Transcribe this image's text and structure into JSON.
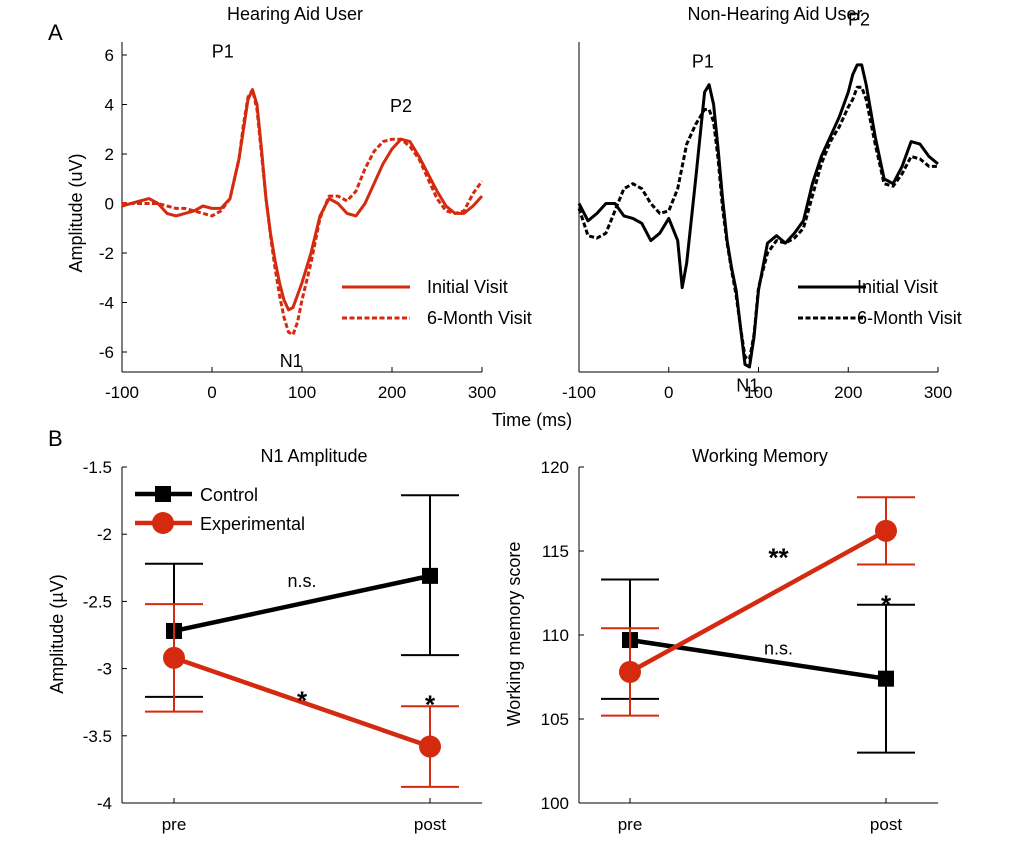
{
  "panel_labels": {
    "a": "A",
    "b": "B"
  },
  "colors": {
    "red": "#d42a0f",
    "black": "#000000"
  },
  "chart_data": [
    {
      "type": "line",
      "title": "Hearing Aid User",
      "ylabel": "Amplitude (uV)",
      "xlim": [
        -100,
        300
      ],
      "ylim": [
        -7,
        7
      ],
      "xticks": [
        -100,
        0,
        100,
        200,
        300
      ],
      "yticks": [
        6,
        4,
        2,
        0,
        -2,
        -4,
        -6
      ],
      "color": "#d42a0f",
      "series": [
        {
          "name": "Initial Visit",
          "style": "solid",
          "x": [
            -100,
            -90,
            -80,
            -70,
            -60,
            -50,
            -40,
            -30,
            -20,
            -10,
            0,
            10,
            20,
            30,
            35,
            40,
            45,
            50,
            55,
            60,
            65,
            70,
            75,
            80,
            85,
            90,
            95,
            100,
            110,
            120,
            130,
            140,
            150,
            160,
            170,
            180,
            190,
            200,
            210,
            220,
            230,
            240,
            250,
            260,
            270,
            280,
            290,
            300
          ],
          "y": [
            -0.1,
            0,
            0.1,
            0.2,
            0,
            -0.4,
            -0.5,
            -0.4,
            -0.3,
            -0.1,
            -0.2,
            -0.2,
            0.2,
            1.8,
            3,
            4.2,
            4.6,
            4,
            2.2,
            0.2,
            -1.2,
            -2.3,
            -3.2,
            -3.9,
            -4.3,
            -4.2,
            -3.7,
            -3.2,
            -2,
            -0.5,
            0.2,
            0,
            -0.4,
            -0.5,
            0,
            0.8,
            1.6,
            2.2,
            2.6,
            2.5,
            1.9,
            1.2,
            0.5,
            -0.1,
            -0.4,
            -0.4,
            -0.1,
            0.3
          ]
        },
        {
          "name": "6-Month Visit",
          "style": "dashed",
          "x": [
            -100,
            -90,
            -80,
            -70,
            -60,
            -50,
            -40,
            -30,
            -20,
            -10,
            0,
            10,
            20,
            30,
            35,
            40,
            45,
            50,
            55,
            60,
            65,
            70,
            75,
            80,
            85,
            90,
            95,
            100,
            110,
            120,
            130,
            140,
            150,
            160,
            170,
            180,
            190,
            200,
            210,
            220,
            230,
            240,
            250,
            260,
            270,
            280,
            290,
            300
          ],
          "y": [
            0,
            0,
            0,
            0,
            0,
            -0.1,
            -0.2,
            -0.2,
            -0.3,
            -0.4,
            -0.5,
            -0.3,
            0.2,
            1.8,
            3.2,
            4.3,
            4.6,
            3.8,
            2,
            0.2,
            -1.3,
            -2.6,
            -3.7,
            -4.6,
            -5.2,
            -5.3,
            -4.8,
            -3.9,
            -2.4,
            -0.6,
            0.3,
            0.3,
            0.1,
            0.5,
            1.4,
            2.1,
            2.5,
            2.6,
            2.6,
            2.3,
            1.8,
            1,
            0.2,
            -0.3,
            -0.4,
            -0.3,
            0.4,
            0.9
          ]
        }
      ],
      "annotations": [
        {
          "text": "P1",
          "x": 12,
          "y": 5.9
        },
        {
          "text": "P2",
          "x": 210,
          "y": 3.7
        },
        {
          "text": "N1",
          "x": 88,
          "y": -6.6
        }
      ],
      "legend": {
        "placement": "bottom-right"
      }
    },
    {
      "type": "line",
      "title": "Non-Hearing Aid User",
      "xlabel": "Time (ms)",
      "xlim": [
        -100,
        300
      ],
      "ylim": [
        -7,
        7
      ],
      "xticks": [
        -100,
        0,
        100,
        200,
        300
      ],
      "color": "#000000",
      "series": [
        {
          "name": "Initial Visit",
          "style": "solid",
          "x": [
            -100,
            -90,
            -80,
            -70,
            -60,
            -50,
            -40,
            -30,
            -20,
            -10,
            0,
            10,
            15,
            20,
            30,
            40,
            45,
            50,
            55,
            60,
            65,
            70,
            75,
            80,
            85,
            90,
            95,
            100,
            110,
            120,
            130,
            140,
            150,
            160,
            170,
            180,
            190,
            200,
            205,
            210,
            215,
            220,
            230,
            240,
            250,
            260,
            270,
            280,
            290,
            300
          ],
          "y": [
            0,
            -0.7,
            -0.4,
            0,
            0,
            -0.5,
            -0.6,
            -0.8,
            -1.5,
            -1.2,
            -0.6,
            -1.5,
            -3.4,
            -2.4,
            1,
            4.5,
            4.8,
            4,
            2.2,
            0.2,
            -1.5,
            -2.6,
            -3.5,
            -5,
            -6.5,
            -6.6,
            -5.4,
            -3.5,
            -1.6,
            -1.3,
            -1.6,
            -1.2,
            -0.7,
            0.8,
            1.9,
            2.7,
            3.5,
            4.5,
            5.2,
            5.6,
            5.6,
            4.8,
            2.7,
            1,
            0.8,
            1.5,
            2.5,
            2.4,
            1.9,
            1.6
          ]
        },
        {
          "name": "6-Month Visit",
          "style": "dashed",
          "x": [
            -100,
            -90,
            -80,
            -70,
            -60,
            -50,
            -40,
            -30,
            -20,
            -10,
            0,
            10,
            15,
            20,
            30,
            40,
            45,
            50,
            55,
            60,
            65,
            70,
            75,
            80,
            85,
            90,
            95,
            100,
            110,
            120,
            130,
            140,
            150,
            160,
            170,
            180,
            190,
            200,
            205,
            210,
            215,
            220,
            230,
            240,
            250,
            260,
            270,
            280,
            290,
            300
          ],
          "y": [
            -0.2,
            -1.3,
            -1.4,
            -1.2,
            -0.3,
            0.6,
            0.8,
            0.6,
            0,
            -0.4,
            -0.3,
            0.6,
            1.5,
            2.4,
            3.2,
            3.8,
            3.8,
            3.3,
            1.8,
            -0.2,
            -1.6,
            -2.7,
            -3.7,
            -5,
            -6.2,
            -6.3,
            -5.3,
            -3.4,
            -2,
            -1.5,
            -1.6,
            -1.4,
            -1,
            0.3,
            1.6,
            2.5,
            3.1,
            3.9,
            4.2,
            4.7,
            4.7,
            4.2,
            2.4,
            0.8,
            0.7,
            1.2,
            1.9,
            1.8,
            1.5,
            1.5
          ]
        }
      ],
      "annotations": [
        {
          "text": "P1",
          "x": 38,
          "y": 5.5
        },
        {
          "text": "P2",
          "x": 212,
          "y": 7.2
        },
        {
          "text": "N1",
          "x": 88,
          "y": -7.6
        }
      ],
      "legend": {
        "placement": "bottom-right"
      }
    },
    {
      "type": "line",
      "title": "N1 Amplitude",
      "ylabel": "Amplitude (µV)",
      "categories": [
        "pre",
        "post"
      ],
      "ylim": [
        -4,
        -1.5
      ],
      "yticks": [
        "-1.5",
        "-2",
        "-2.5",
        "-3",
        "-3.5",
        "-4"
      ],
      "series": [
        {
          "name": "Control",
          "marker": "square",
          "color": "#000000",
          "values": [
            -2.72,
            -2.31
          ],
          "err_low": [
            -3.21,
            -2.9
          ],
          "err_high": [
            -2.22,
            -1.71
          ]
        },
        {
          "name": "Experimental",
          "marker": "circle",
          "color": "#d42a0f",
          "values": [
            -2.92,
            -3.58
          ],
          "err_low": [
            -3.32,
            -3.88
          ],
          "err_high": [
            -2.52,
            -3.28
          ]
        }
      ],
      "annotations": [
        {
          "text": "n.s.",
          "x": 0.5,
          "y": -2.35
        },
        {
          "text": "*",
          "x": 0.5,
          "y": -3.2
        },
        {
          "text": "*",
          "x": 1.0,
          "y": -3.23
        }
      ],
      "legend": {
        "placement": "top-left"
      }
    },
    {
      "type": "line",
      "title": "Working Memory",
      "ylabel": "Working memory score",
      "categories": [
        "pre",
        "post"
      ],
      "ylim": [
        100,
        120
      ],
      "yticks": [
        "120",
        "115",
        "110",
        "105",
        "100"
      ],
      "series": [
        {
          "name": "Control",
          "marker": "square",
          "color": "#000000",
          "values": [
            109.7,
            107.4
          ],
          "err_low": [
            106.2,
            103.0
          ],
          "err_high": [
            113.3,
            111.8
          ]
        },
        {
          "name": "Experimental",
          "marker": "circle",
          "color": "#d42a0f",
          "values": [
            107.8,
            116.2
          ],
          "err_low": [
            105.2,
            114.2
          ],
          "err_high": [
            110.4,
            118.2
          ]
        }
      ],
      "annotations": [
        {
          "text": "**",
          "x": 0.58,
          "y": 114.9
        },
        {
          "text": "*",
          "x": 1.0,
          "y": 112.1
        },
        {
          "text": "n.s.",
          "x": 0.58,
          "y": 109.2
        }
      ]
    }
  ]
}
